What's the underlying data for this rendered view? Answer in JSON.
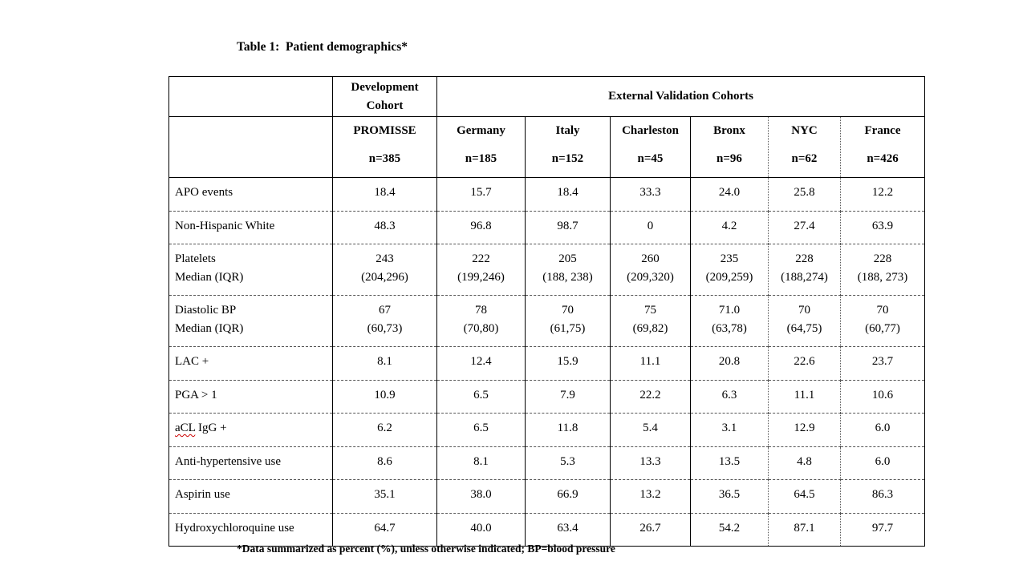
{
  "table": {
    "title": "Table 1:  Patient demographics*",
    "header": {
      "dev_cohort_label": "Development Cohort",
      "external_label": "External Validation Cohorts",
      "columns": [
        {
          "name": "PROMISSE",
          "n": "n=385"
        },
        {
          "name": "Germany",
          "n": "n=185"
        },
        {
          "name": "Italy",
          "n": "n=152"
        },
        {
          "name": "Charleston",
          "n": "n=45"
        },
        {
          "name": "Bronx",
          "n": "n=96"
        },
        {
          "name": "NYC",
          "n": "n=62"
        },
        {
          "name": "France",
          "n": "n=426"
        }
      ]
    },
    "rows": [
      {
        "label": "APO events",
        "values": [
          "18.4",
          "15.7",
          "18.4",
          "33.3",
          "24.0",
          "25.8",
          "12.2"
        ]
      },
      {
        "label": "Non-Hispanic White",
        "values": [
          "48.3",
          "96.8",
          "98.7",
          "0",
          "4.2",
          "27.4",
          "63.9"
        ]
      },
      {
        "label": "Platelets\nMedian (IQR)",
        "values": [
          "243\n(204,296)",
          "222\n(199,246)",
          "205\n(188, 238)",
          "260\n(209,320)",
          "235\n(209,259)",
          "228\n(188,274)",
          "228\n(188, 273)"
        ]
      },
      {
        "label": "Diastolic BP\nMedian (IQR)",
        "values": [
          "67\n(60,73)",
          "78\n(70,80)",
          "70\n(61,75)",
          "75\n(69,82)",
          "71.0\n(63,78)",
          "70\n(64,75)",
          "70\n(60,77)"
        ]
      },
      {
        "label": "LAC +",
        "values": [
          "8.1",
          "12.4",
          "15.9",
          "11.1",
          "20.8",
          "22.6",
          "23.7"
        ]
      },
      {
        "label": "PGA > 1",
        "values": [
          "10.9",
          "6.5",
          "7.9",
          "22.2",
          "6.3",
          "11.1",
          "10.6"
        ]
      },
      {
        "label": "aCL IgG +",
        "label_parts": [
          {
            "text": "aCL",
            "wavy": true
          },
          {
            "text": " IgG +",
            "wavy": false
          }
        ],
        "values": [
          "6.2",
          "6.5",
          "11.8",
          "5.4",
          "3.1",
          "12.9",
          "6.0"
        ]
      },
      {
        "label": "Anti-hypertensive use",
        "values": [
          "8.6",
          "8.1",
          "5.3",
          "13.3",
          "13.5",
          "4.8",
          "6.0"
        ]
      },
      {
        "label": "Aspirin use",
        "values": [
          "35.1",
          "38.0",
          "66.9",
          "13.2",
          "36.5",
          "64.5",
          "86.3"
        ]
      },
      {
        "label": "Hydroxychloroquine use",
        "values": [
          "64.7",
          "40.0",
          "63.4",
          "26.7",
          "54.2",
          "87.1",
          "97.7"
        ]
      }
    ],
    "footnote": "*Data summarized as percent (%), unless otherwise indicated; BP=blood pressure",
    "spellcheck_color": "#cc0000"
  }
}
